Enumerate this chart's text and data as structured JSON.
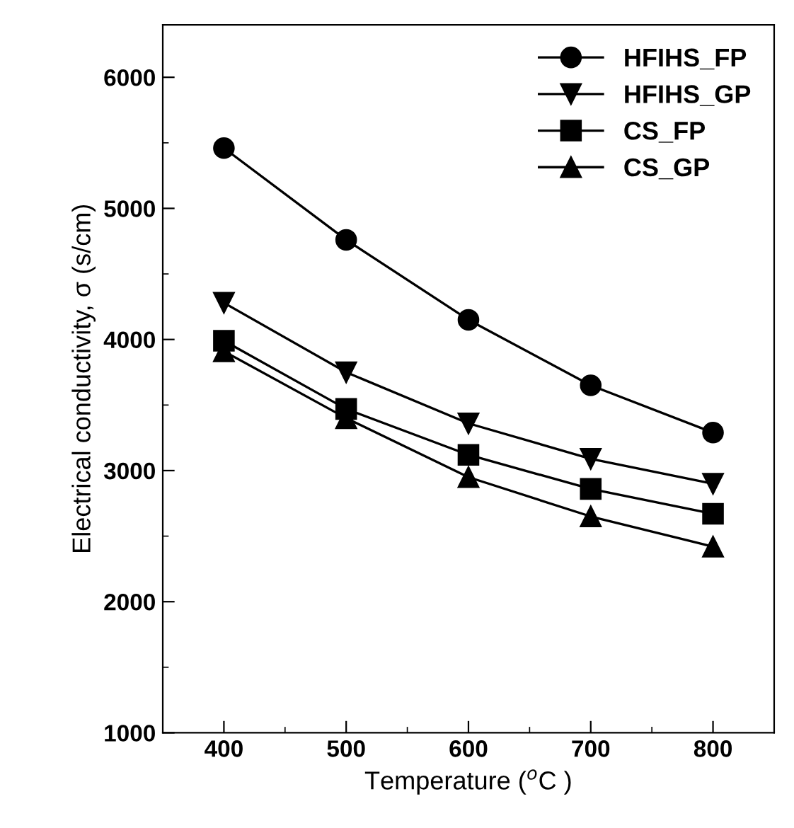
{
  "chart_data": {
    "type": "line",
    "xlabel": "Temperature ($^{o}$C )",
    "ylabel": "Electrical conductivity, σ (s/cm)",
    "x": [
      400,
      500,
      600,
      700,
      800
    ],
    "xlim": [
      350,
      850
    ],
    "xticks": [
      400,
      500,
      600,
      700,
      800
    ],
    "ylim": [
      1000,
      6400
    ],
    "yticks": [
      1000,
      2000,
      3000,
      4000,
      5000,
      6000
    ],
    "legend": "top right",
    "grid": false,
    "line_style": "solid",
    "series": [
      {
        "name": "HFIHS_FP",
        "color": "#000000",
        "marker": "circle",
        "values": [
          5460,
          4760,
          4150,
          3650,
          3290
        ]
      },
      {
        "name": "HFIHS_GP",
        "color": "#000000",
        "marker": "triangle_down",
        "values": [
          4280,
          3750,
          3360,
          3090,
          2900
        ]
      },
      {
        "name": "CS_FP",
        "color": "#000000",
        "marker": "square",
        "values": [
          3990,
          3470,
          3120,
          2860,
          2670
        ]
      },
      {
        "name": "CS_GP",
        "color": "#000000",
        "marker": "triangle",
        "values": [
          3910,
          3400,
          2950,
          2650,
          2420
        ]
      }
    ]
  }
}
